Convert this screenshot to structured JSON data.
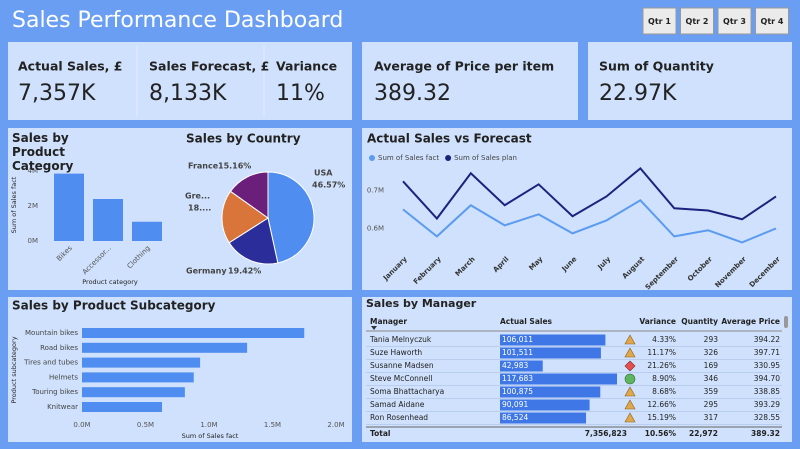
{
  "header": {
    "title": "Sales Performance Dashboard"
  },
  "slicer": {
    "buttons": [
      "Qtr 1",
      "Qtr 2",
      "Qtr 3",
      "Qtr 4"
    ]
  },
  "kpis": [
    {
      "label": "Actual Sales, £",
      "value": "7,357K"
    },
    {
      "label": "Sales Forecast, £",
      "value": "8,133K"
    },
    {
      "label": "Variance",
      "value": "11%"
    },
    {
      "label": "Average of Price per item",
      "value": "389.32"
    },
    {
      "label": "Sum of Quantity",
      "value": "22.97K"
    }
  ],
  "chart_data": [
    {
      "type": "bar",
      "title": "Sales by Product Category",
      "categories": [
        "Bikes",
        "Accessor...",
        "Clothing"
      ],
      "values": [
        3.85,
        2.4,
        1.1
      ],
      "color": "#4f8ef0",
      "ylim": [
        0,
        4
      ],
      "yticks": [
        {
          "value": 0,
          "label": "0M"
        },
        {
          "value": 2,
          "label": "2M"
        },
        {
          "value": 4,
          "label": "4M"
        }
      ],
      "xlabel": "Product category",
      "ylabel": "Sum of Sales fact"
    },
    {
      "type": "pie",
      "title": "Sales by Country",
      "categories": [
        "USA",
        "Germany",
        "Gre...",
        "France"
      ],
      "values": [
        46.57,
        19.42,
        18.85,
        15.16
      ],
      "value_labels": [
        "46.57%",
        "19.42%",
        "18....",
        "15.16%"
      ],
      "colors": [
        "#4f8ef0",
        "#2b2e9a",
        "#d9743b",
        "#6b1f7a"
      ]
    },
    {
      "type": "line",
      "title": "Actual Sales vs Forecast",
      "categories": [
        "January",
        "February",
        "March",
        "April",
        "May",
        "June",
        "July",
        "August",
        "September",
        "October",
        "November",
        "December"
      ],
      "series": [
        {
          "name": "Sum of Sales fact",
          "color": "#5b9bf0",
          "values": [
            0.65,
            0.579,
            0.661,
            0.608,
            0.637,
            0.587,
            0.621,
            0.674,
            0.579,
            0.595,
            0.563,
            0.6
          ]
        },
        {
          "name": "Sum of Sales plan",
          "color": "#1a237e",
          "values": [
            0.724,
            0.626,
            0.745,
            0.661,
            0.716,
            0.632,
            0.684,
            0.758,
            0.653,
            0.647,
            0.624,
            0.684
          ]
        }
      ],
      "ylim": [
        0.53,
        0.78
      ],
      "yticks": [
        {
          "value": 0.6,
          "label": "0.6M"
        },
        {
          "value": 0.7,
          "label": "0.7M"
        }
      ]
    },
    {
      "type": "hbar",
      "title": "Sales by Product Subcategory",
      "categories": [
        "Mountain bikes",
        "Road bikes",
        "Tires and tubes",
        "Helmets",
        "Touring bikes",
        "Knitwear"
      ],
      "values": [
        1.75,
        1.3,
        0.93,
        0.88,
        0.81,
        0.63
      ],
      "color": "#4f8ef0",
      "xlim": [
        0,
        2
      ],
      "xticks": [
        {
          "value": 0,
          "label": "0.0M"
        },
        {
          "value": 0.5,
          "label": "0.5M"
        },
        {
          "value": 1,
          "label": "1.0M"
        },
        {
          "value": 1.5,
          "label": "1.5M"
        },
        {
          "value": 2,
          "label": "2.0M"
        }
      ],
      "xlabel": "Sum of Sales fact",
      "ylabel": "Product subcategory"
    }
  ],
  "table": {
    "title": "Sales by Manager",
    "columns": [
      "Manager",
      "Actual Sales",
      "Variance",
      "Quantity",
      "Average Price"
    ],
    "rows": [
      [
        "Tania Melnyczuk",
        "106,011",
        "4.33%",
        "293",
        "394.22"
      ],
      [
        "Suze Haworth",
        "101,511",
        "11.17%",
        "326",
        "397.71"
      ],
      [
        "Susanne Madsen",
        "42,983",
        "21.26%",
        "169",
        "330.95"
      ],
      [
        "Steve McConnell",
        "117,683",
        "8.90%",
        "346",
        "394.70"
      ],
      [
        "Soma Bhattacharya",
        "100,875",
        "8.68%",
        "359",
        "338.85"
      ],
      [
        "Samad Aidane",
        "90,091",
        "12.66%",
        "295",
        "393.29"
      ],
      [
        "Ron Rosenhead",
        "86,524",
        "15.19%",
        "317",
        "328.55"
      ]
    ],
    "total": [
      "Total",
      "7,356,823",
      "10.56%",
      "22,972",
      "389.32"
    ]
  }
}
